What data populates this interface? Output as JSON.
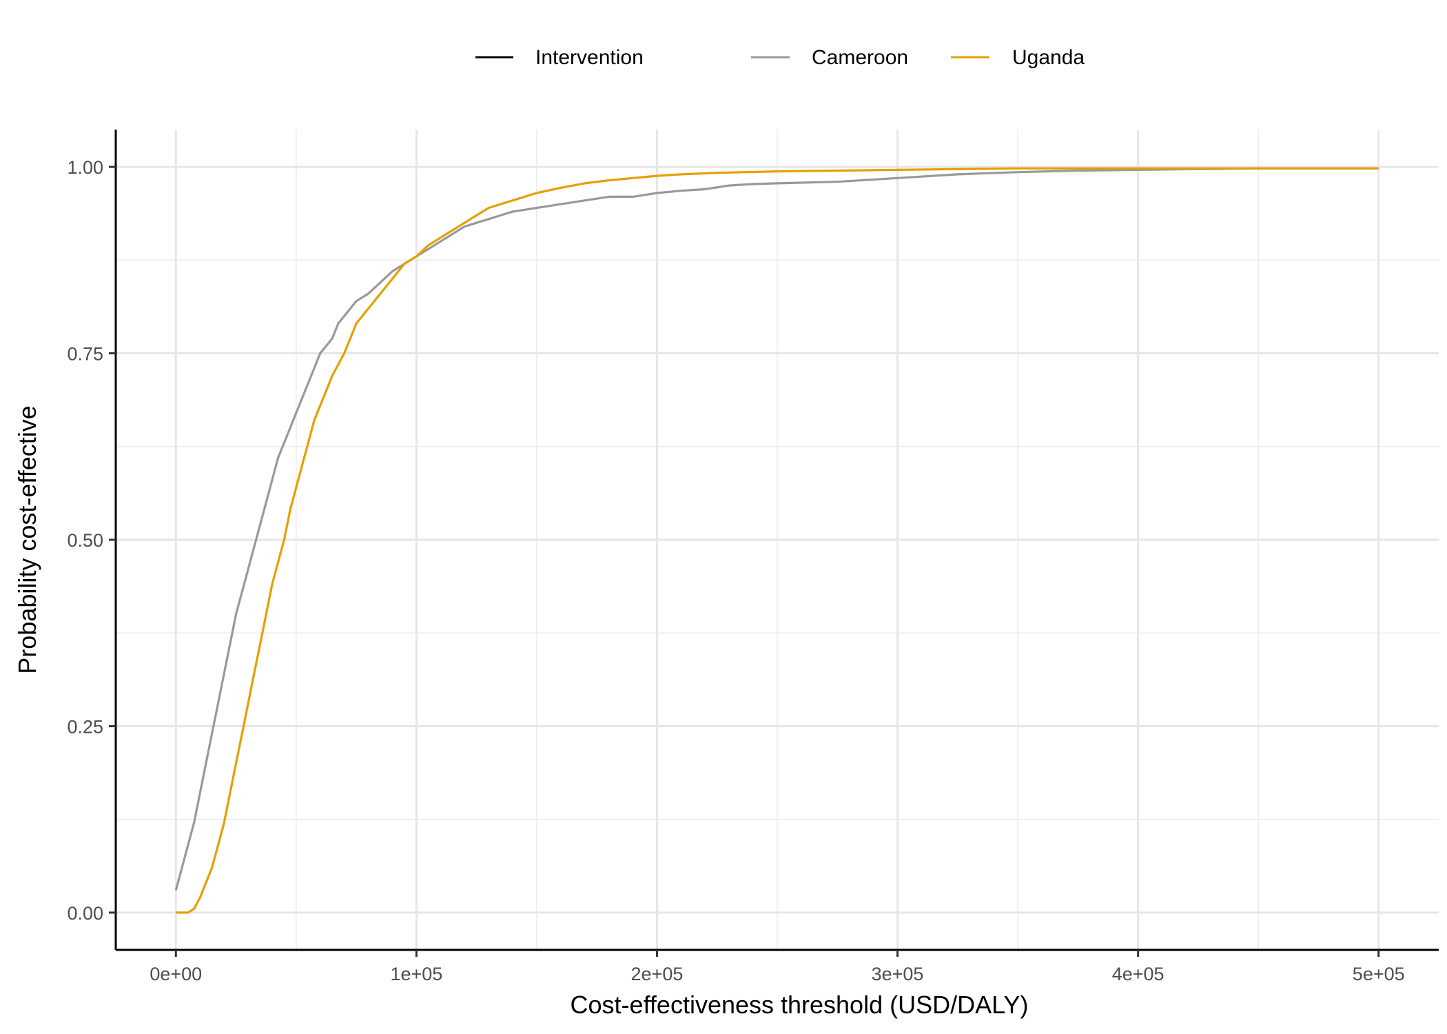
{
  "chart_data": {
    "type": "line",
    "xlabel": "Cost-effectiveness threshold (USD/DALY)",
    "ylabel": "Probability cost-effective",
    "xlim": [
      -25000,
      525000
    ],
    "ylim": [
      -0.05,
      1.05
    ],
    "x_ticks": [
      0,
      100000,
      200000,
      300000,
      400000,
      500000
    ],
    "x_tick_labels": [
      "0e+00",
      "1e+05",
      "2e+05",
      "3e+05",
      "4e+05",
      "5e+05"
    ],
    "y_ticks": [
      0,
      0.25,
      0.5,
      0.75,
      1.0
    ],
    "y_tick_labels": [
      "0.00",
      "0.25",
      "0.50",
      "0.75",
      "1.00"
    ],
    "grid": true,
    "legend_position": "top",
    "legend_title": "Intervention",
    "series": [
      {
        "name": "Cameroon",
        "color": "#999999",
        "x": [
          0,
          2500,
          5000,
          7500,
          10000,
          12500,
          15000,
          17500,
          20000,
          22500,
          25000,
          27500,
          30000,
          32500,
          35000,
          37500,
          40000,
          42500,
          45000,
          47500,
          50000,
          52500,
          55000,
          57500,
          60000,
          62500,
          65000,
          67500,
          70000,
          72500,
          75000,
          80000,
          85000,
          90000,
          95000,
          100000,
          105000,
          110000,
          115000,
          120000,
          125000,
          130000,
          135000,
          140000,
          150000,
          160000,
          170000,
          180000,
          190000,
          200000,
          210000,
          220000,
          230000,
          240000,
          250000,
          275000,
          300000,
          325000,
          350000,
          375000,
          400000,
          425000,
          450000,
          475000,
          500000
        ],
        "y": [
          0.03,
          0.06,
          0.09,
          0.12,
          0.16,
          0.2,
          0.24,
          0.28,
          0.32,
          0.36,
          0.4,
          0.43,
          0.46,
          0.49,
          0.52,
          0.55,
          0.58,
          0.61,
          0.63,
          0.65,
          0.67,
          0.69,
          0.71,
          0.73,
          0.75,
          0.76,
          0.77,
          0.79,
          0.8,
          0.81,
          0.82,
          0.83,
          0.845,
          0.86,
          0.87,
          0.88,
          0.89,
          0.9,
          0.91,
          0.92,
          0.925,
          0.93,
          0.935,
          0.94,
          0.945,
          0.95,
          0.955,
          0.96,
          0.96,
          0.965,
          0.968,
          0.97,
          0.975,
          0.977,
          0.978,
          0.98,
          0.985,
          0.99,
          0.993,
          0.995,
          0.996,
          0.997,
          0.998,
          0.998,
          0.998
        ]
      },
      {
        "name": "Uganda",
        "color": "#E69F00",
        "x": [
          0,
          5000,
          7500,
          10000,
          12500,
          15000,
          17500,
          20000,
          22500,
          25000,
          27500,
          30000,
          32500,
          35000,
          37500,
          40000,
          42500,
          45000,
          47500,
          50000,
          52500,
          55000,
          57500,
          60000,
          62500,
          65000,
          67500,
          70000,
          72500,
          75000,
          80000,
          85000,
          90000,
          95000,
          100000,
          105000,
          110000,
          115000,
          120000,
          125000,
          130000,
          135000,
          140000,
          150000,
          160000,
          170000,
          180000,
          190000,
          200000,
          210000,
          225000,
          250000,
          275000,
          300000,
          325000,
          350000,
          375000,
          400000,
          450000,
          500000
        ],
        "y": [
          0.0,
          0.0,
          0.005,
          0.02,
          0.04,
          0.06,
          0.09,
          0.12,
          0.16,
          0.2,
          0.24,
          0.28,
          0.32,
          0.36,
          0.4,
          0.44,
          0.47,
          0.5,
          0.54,
          0.57,
          0.6,
          0.63,
          0.66,
          0.68,
          0.7,
          0.72,
          0.735,
          0.75,
          0.77,
          0.79,
          0.81,
          0.83,
          0.85,
          0.87,
          0.88,
          0.895,
          0.905,
          0.915,
          0.925,
          0.935,
          0.945,
          0.95,
          0.955,
          0.965,
          0.972,
          0.978,
          0.982,
          0.985,
          0.988,
          0.99,
          0.992,
          0.994,
          0.995,
          0.996,
          0.997,
          0.998,
          0.998,
          0.998,
          0.998,
          0.998
        ]
      }
    ]
  }
}
